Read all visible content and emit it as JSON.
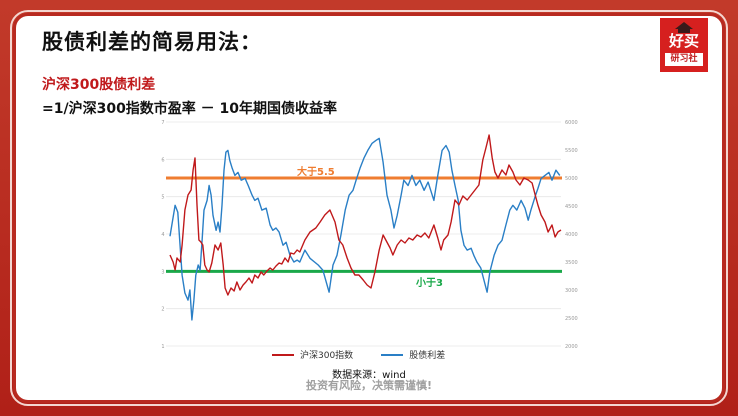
{
  "slide": {
    "title": "股债利差的简易用法：",
    "subtitle": "沪深300股债利差",
    "formula": "=1/沪深300指数市盈率 － 10年期国债收益率",
    "logo": {
      "brand": "好买",
      "tag": "研习社",
      "icon": "graduation-cap-icon"
    },
    "source": "数据来源：wind",
    "disclaimer": "投资有风险，决策需谨慎!",
    "colors": {
      "frame": "#b8261f",
      "accent_red": "#c0191b",
      "index_line": "#c0191b",
      "spread_line": "#2a7fc6",
      "upper_threshold": "#ef7d31",
      "lower_threshold": "#1aa84a"
    }
  },
  "chart_data": {
    "type": "line",
    "title": "",
    "xlabel": "",
    "ylabel_left": "股债利差",
    "ylabel_right": "沪深300指数",
    "left_ticks": [
      "1",
      "2",
      "3",
      "4",
      "5",
      "6",
      "7"
    ],
    "right_ticks": [
      "2000",
      "2500",
      "3000",
      "3500",
      "4000",
      "4500",
      "5000",
      "5500",
      "6000"
    ],
    "ylim_left": [
      1,
      7
    ],
    "ylim_right": [
      2000,
      6000
    ],
    "grid": true,
    "legend_position": "bottom",
    "legend": [
      "沪深300指数",
      "股债利差"
    ],
    "reference_lines": [
      {
        "label": "大于5.5",
        "value": 5.5,
        "axis": "left",
        "color": "#ef7d31"
      },
      {
        "label": "小于3",
        "value": 3,
        "axis": "left",
        "color": "#1aa84a"
      }
    ],
    "series": [
      {
        "name": "沪深300指数",
        "axis": "right",
        "color": "#c0191b",
        "points": [
          [
            0,
            3625
          ],
          [
            0.8,
            3500
          ],
          [
            1.3,
            3357
          ],
          [
            1.8,
            3571
          ],
          [
            2.6,
            3500
          ],
          [
            3.1,
            3804
          ],
          [
            3.8,
            4429
          ],
          [
            4.6,
            4696
          ],
          [
            5.4,
            4786
          ],
          [
            5.9,
            5143
          ],
          [
            6.4,
            5357
          ],
          [
            6.9,
            4518
          ],
          [
            7.4,
            3893
          ],
          [
            7.9,
            3857
          ],
          [
            8.4,
            3804
          ],
          [
            8.9,
            3446
          ],
          [
            9.5,
            3357
          ],
          [
            10,
            3321
          ],
          [
            10.7,
            3482
          ],
          [
            11.5,
            3804
          ],
          [
            12.3,
            3714
          ],
          [
            13,
            3839
          ],
          [
            13.6,
            3446
          ],
          [
            14.1,
            3036
          ],
          [
            14.8,
            2911
          ],
          [
            15.6,
            3036
          ],
          [
            16.4,
            2982
          ],
          [
            17.1,
            3143
          ],
          [
            17.9,
            3000
          ],
          [
            18.7,
            3089
          ],
          [
            19.4,
            3143
          ],
          [
            20.2,
            3214
          ],
          [
            21,
            3125
          ],
          [
            21.7,
            3268
          ],
          [
            22.5,
            3214
          ],
          [
            23.3,
            3321
          ],
          [
            24,
            3268
          ],
          [
            24.8,
            3339
          ],
          [
            25.6,
            3393
          ],
          [
            26.3,
            3357
          ],
          [
            27.1,
            3429
          ],
          [
            27.9,
            3482
          ],
          [
            28.6,
            3464
          ],
          [
            29.4,
            3571
          ],
          [
            30.2,
            3500
          ],
          [
            30.9,
            3661
          ],
          [
            31.7,
            3643
          ],
          [
            32.5,
            3714
          ],
          [
            33.2,
            3679
          ],
          [
            34.5,
            3893
          ],
          [
            35.8,
            4036
          ],
          [
            37.3,
            4107
          ],
          [
            38.4,
            4214
          ],
          [
            39.6,
            4339
          ],
          [
            40.9,
            4429
          ],
          [
            42.2,
            4214
          ],
          [
            43.2,
            3893
          ],
          [
            44.2,
            3804
          ],
          [
            45.3,
            3571
          ],
          [
            46.3,
            3393
          ],
          [
            47.3,
            3268
          ],
          [
            48.3,
            3268
          ],
          [
            49.4,
            3179
          ],
          [
            50.4,
            3089
          ],
          [
            51.4,
            3036
          ],
          [
            52.4,
            3321
          ],
          [
            53.5,
            3714
          ],
          [
            54.5,
            3982
          ],
          [
            55.2,
            3893
          ],
          [
            56.3,
            3750
          ],
          [
            57,
            3625
          ],
          [
            58.1,
            3804
          ],
          [
            59.1,
            3893
          ],
          [
            60.1,
            3839
          ],
          [
            61.1,
            3929
          ],
          [
            62.1,
            3893
          ],
          [
            63.2,
            3982
          ],
          [
            64.2,
            3946
          ],
          [
            65.2,
            4018
          ],
          [
            66.2,
            3929
          ],
          [
            67.5,
            4161
          ],
          [
            68.5,
            3929
          ],
          [
            69.3,
            3714
          ],
          [
            70,
            3893
          ],
          [
            71.1,
            3982
          ],
          [
            71.9,
            4214
          ],
          [
            72.9,
            4607
          ],
          [
            73.9,
            4518
          ],
          [
            74.9,
            4679
          ],
          [
            76,
            4607
          ],
          [
            77,
            4696
          ],
          [
            78,
            4786
          ],
          [
            79,
            4875
          ],
          [
            80,
            5321
          ],
          [
            80.8,
            5536
          ],
          [
            81.6,
            5768
          ],
          [
            82.4,
            5357
          ],
          [
            83.1,
            5107
          ],
          [
            83.9,
            5000
          ],
          [
            84.9,
            5143
          ],
          [
            85.9,
            5054
          ],
          [
            86.7,
            5232
          ],
          [
            87.7,
            5107
          ],
          [
            88.5,
            4964
          ],
          [
            89.5,
            4875
          ],
          [
            90.5,
            5000
          ],
          [
            91.6,
            4964
          ],
          [
            92.6,
            4911
          ],
          [
            93.4,
            4696
          ],
          [
            94.1,
            4518
          ],
          [
            94.9,
            4339
          ],
          [
            95.9,
            4214
          ],
          [
            96.7,
            4036
          ],
          [
            97.7,
            4161
          ],
          [
            98.5,
            3946
          ],
          [
            99.2,
            4036
          ],
          [
            100,
            4071
          ]
        ]
      },
      {
        "name": "股债利差",
        "axis": "left",
        "color": "#2a7fc6",
        "points": [
          [
            0,
            3.94
          ],
          [
            1.3,
            4.77
          ],
          [
            2,
            4.58
          ],
          [
            3.1,
            2.9
          ],
          [
            3.8,
            2.42
          ],
          [
            4.6,
            2.23
          ],
          [
            5.1,
            2.5
          ],
          [
            5.6,
            1.7
          ],
          [
            6.1,
            2.23
          ],
          [
            6.6,
            2.9
          ],
          [
            7.2,
            3.17
          ],
          [
            7.7,
            3.03
          ],
          [
            8.2,
            3.83
          ],
          [
            8.7,
            4.64
          ],
          [
            9.5,
            4.9
          ],
          [
            10,
            5.3
          ],
          [
            10.5,
            5.04
          ],
          [
            11,
            4.5
          ],
          [
            11.8,
            4.1
          ],
          [
            12.3,
            4.32
          ],
          [
            12.8,
            4.05
          ],
          [
            13.3,
            4.77
          ],
          [
            13.8,
            5.71
          ],
          [
            14.3,
            6.19
          ],
          [
            14.8,
            6.24
          ],
          [
            15.3,
            5.97
          ],
          [
            15.9,
            5.76
          ],
          [
            16.6,
            5.57
          ],
          [
            17.4,
            5.65
          ],
          [
            18.2,
            5.44
          ],
          [
            19.2,
            5.49
          ],
          [
            20,
            5.3
          ],
          [
            21,
            5.04
          ],
          [
            21.7,
            4.9
          ],
          [
            22.5,
            4.96
          ],
          [
            23.5,
            4.64
          ],
          [
            24.6,
            4.69
          ],
          [
            25.6,
            4.24
          ],
          [
            26.3,
            4.1
          ],
          [
            27.1,
            4.16
          ],
          [
            27.9,
            4.05
          ],
          [
            28.9,
            3.7
          ],
          [
            29.7,
            3.78
          ],
          [
            30.7,
            3.43
          ],
          [
            31.7,
            3.25
          ],
          [
            32.5,
            3.3
          ],
          [
            33.2,
            3.25
          ],
          [
            34.5,
            3.57
          ],
          [
            35.8,
            3.35
          ],
          [
            37.9,
            3.17
          ],
          [
            39.1,
            3.03
          ],
          [
            40.7,
            2.44
          ],
          [
            41.7,
            3.17
          ],
          [
            42.7,
            3.43
          ],
          [
            43.7,
            3.97
          ],
          [
            44.8,
            4.64
          ],
          [
            45.8,
            5.04
          ],
          [
            46.8,
            5.17
          ],
          [
            47.6,
            5.44
          ],
          [
            48.6,
            5.76
          ],
          [
            49.6,
            6.03
          ],
          [
            50.6,
            6.24
          ],
          [
            51.7,
            6.43
          ],
          [
            52.7,
            6.51
          ],
          [
            53.5,
            6.56
          ],
          [
            54.5,
            5.92
          ],
          [
            55.5,
            5.04
          ],
          [
            56.5,
            4.64
          ],
          [
            57.3,
            4.16
          ],
          [
            58.1,
            4.5
          ],
          [
            59.1,
            5.04
          ],
          [
            59.8,
            5.44
          ],
          [
            60.9,
            5.3
          ],
          [
            61.9,
            5.57
          ],
          [
            62.9,
            5.3
          ],
          [
            63.9,
            5.44
          ],
          [
            65,
            5.17
          ],
          [
            66,
            5.39
          ],
          [
            67.5,
            4.9
          ],
          [
            68.5,
            5.57
          ],
          [
            69.6,
            6.24
          ],
          [
            70.6,
            6.37
          ],
          [
            71.4,
            6.19
          ],
          [
            72.1,
            5.71
          ],
          [
            72.9,
            5.3
          ],
          [
            73.7,
            4.9
          ],
          [
            74.4,
            4.1
          ],
          [
            75.2,
            3.7
          ],
          [
            76,
            3.57
          ],
          [
            77,
            3.62
          ],
          [
            77.7,
            3.43
          ],
          [
            78.5,
            3.25
          ],
          [
            79.5,
            3.09
          ],
          [
            80.3,
            2.76
          ],
          [
            81.1,
            2.44
          ],
          [
            81.8,
            2.98
          ],
          [
            82.9,
            3.43
          ],
          [
            83.9,
            3.7
          ],
          [
            84.9,
            3.83
          ],
          [
            85.9,
            4.24
          ],
          [
            86.9,
            4.64
          ],
          [
            87.7,
            4.77
          ],
          [
            88.7,
            4.64
          ],
          [
            89.8,
            4.9
          ],
          [
            90.8,
            4.69
          ],
          [
            91.6,
            4.37
          ],
          [
            92.3,
            4.64
          ],
          [
            93.4,
            5.01
          ],
          [
            94.1,
            5.22
          ],
          [
            94.9,
            5.49
          ],
          [
            95.9,
            5.57
          ],
          [
            96.9,
            5.65
          ],
          [
            97.7,
            5.44
          ],
          [
            98.7,
            5.71
          ],
          [
            99.7,
            5.57
          ]
        ]
      }
    ]
  }
}
